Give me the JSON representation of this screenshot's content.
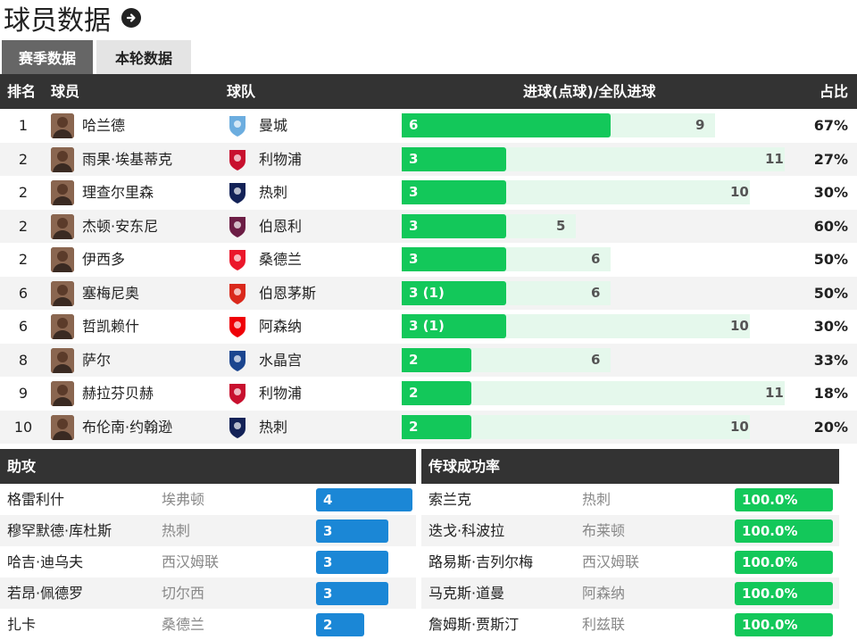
{
  "title": "球员数据",
  "tabs": [
    "赛季数据",
    "本轮数据"
  ],
  "scorers": {
    "headers": {
      "rank": "排名",
      "player": "球员",
      "team": "球队",
      "goals": "进球(点球)/全队进球",
      "share": "占比"
    },
    "rows": [
      {
        "rank": "1",
        "player": "哈兰德",
        "team": "曼城",
        "goals_label": "6",
        "goals": 6,
        "team_goals": 9,
        "pct": "67%",
        "crest": "man-city",
        "crest_color": "#6caddf"
      },
      {
        "rank": "2",
        "player": "雨果·埃基蒂克",
        "team": "利物浦",
        "goals_label": "3",
        "goals": 3,
        "team_goals": 11,
        "pct": "27%",
        "crest": "liverpool",
        "crest_color": "#c8102e"
      },
      {
        "rank": "2",
        "player": "理查尔里森",
        "team": "热刺",
        "goals_label": "3",
        "goals": 3,
        "team_goals": 10,
        "pct": "30%",
        "crest": "tottenham",
        "crest_color": "#132257"
      },
      {
        "rank": "2",
        "player": "杰顿·安东尼",
        "team": "伯恩利",
        "goals_label": "3",
        "goals": 3,
        "team_goals": 5,
        "pct": "60%",
        "crest": "burnley",
        "crest_color": "#6c1d45"
      },
      {
        "rank": "2",
        "player": "伊西多",
        "team": "桑德兰",
        "goals_label": "3",
        "goals": 3,
        "team_goals": 6,
        "pct": "50%",
        "crest": "sunderland",
        "crest_color": "#eb172b"
      },
      {
        "rank": "6",
        "player": "塞梅尼奥",
        "team": "伯恩茅斯",
        "goals_label": "3 (1)",
        "goals": 3,
        "team_goals": 6,
        "pct": "50%",
        "crest": "bournemouth",
        "crest_color": "#da291c"
      },
      {
        "rank": "6",
        "player": "哲凯赖什",
        "team": "阿森纳",
        "goals_label": "3 (1)",
        "goals": 3,
        "team_goals": 10,
        "pct": "30%",
        "crest": "arsenal",
        "crest_color": "#ef0107"
      },
      {
        "rank": "8",
        "player": "萨尔",
        "team": "水晶宫",
        "goals_label": "2",
        "goals": 2,
        "team_goals": 6,
        "pct": "33%",
        "crest": "crystal-palace",
        "crest_color": "#1b458f"
      },
      {
        "rank": "9",
        "player": "赫拉芬贝赫",
        "team": "利物浦",
        "goals_label": "2",
        "goals": 2,
        "team_goals": 11,
        "pct": "18%",
        "crest": "liverpool",
        "crest_color": "#c8102e"
      },
      {
        "rank": "10",
        "player": "布伦南·约翰逊",
        "team": "热刺",
        "goals_label": "2",
        "goals": 2,
        "team_goals": 10,
        "pct": "20%",
        "crest": "tottenham",
        "crest_color": "#132257"
      }
    ]
  },
  "assists": {
    "header": "助攻",
    "rows": [
      {
        "player": "格雷利什",
        "team": "埃弗顿",
        "value": "4",
        "count": 4
      },
      {
        "player": "穆罕默德·库杜斯",
        "team": "热刺",
        "value": "3",
        "count": 3
      },
      {
        "player": "哈吉·迪乌夫",
        "team": "西汉姆联",
        "value": "3",
        "count": 3
      },
      {
        "player": "若昂·佩德罗",
        "team": "切尔西",
        "value": "3",
        "count": 3
      },
      {
        "player": "扎卡",
        "team": "桑德兰",
        "value": "2",
        "count": 2
      }
    ]
  },
  "passing": {
    "header": "传球成功率",
    "rows": [
      {
        "player": "索兰克",
        "team": "热刺",
        "value": "100.0%"
      },
      {
        "player": "迭戈·科波拉",
        "team": "布莱顿",
        "value": "100.0%"
      },
      {
        "player": "路易斯·吉列尔梅",
        "team": "西汉姆联",
        "value": "100.0%"
      },
      {
        "player": "马克斯·道曼",
        "team": "阿森纳",
        "value": "100.0%"
      },
      {
        "player": "詹姆斯·贾斯汀",
        "team": "利兹联",
        "value": "100.0%"
      }
    ]
  },
  "colors": {
    "goal_bar": "#13c85a",
    "goal_bar_bg": "#e5f8ec",
    "assist_bar": "#1b87d6",
    "header_bg": "#333333"
  }
}
